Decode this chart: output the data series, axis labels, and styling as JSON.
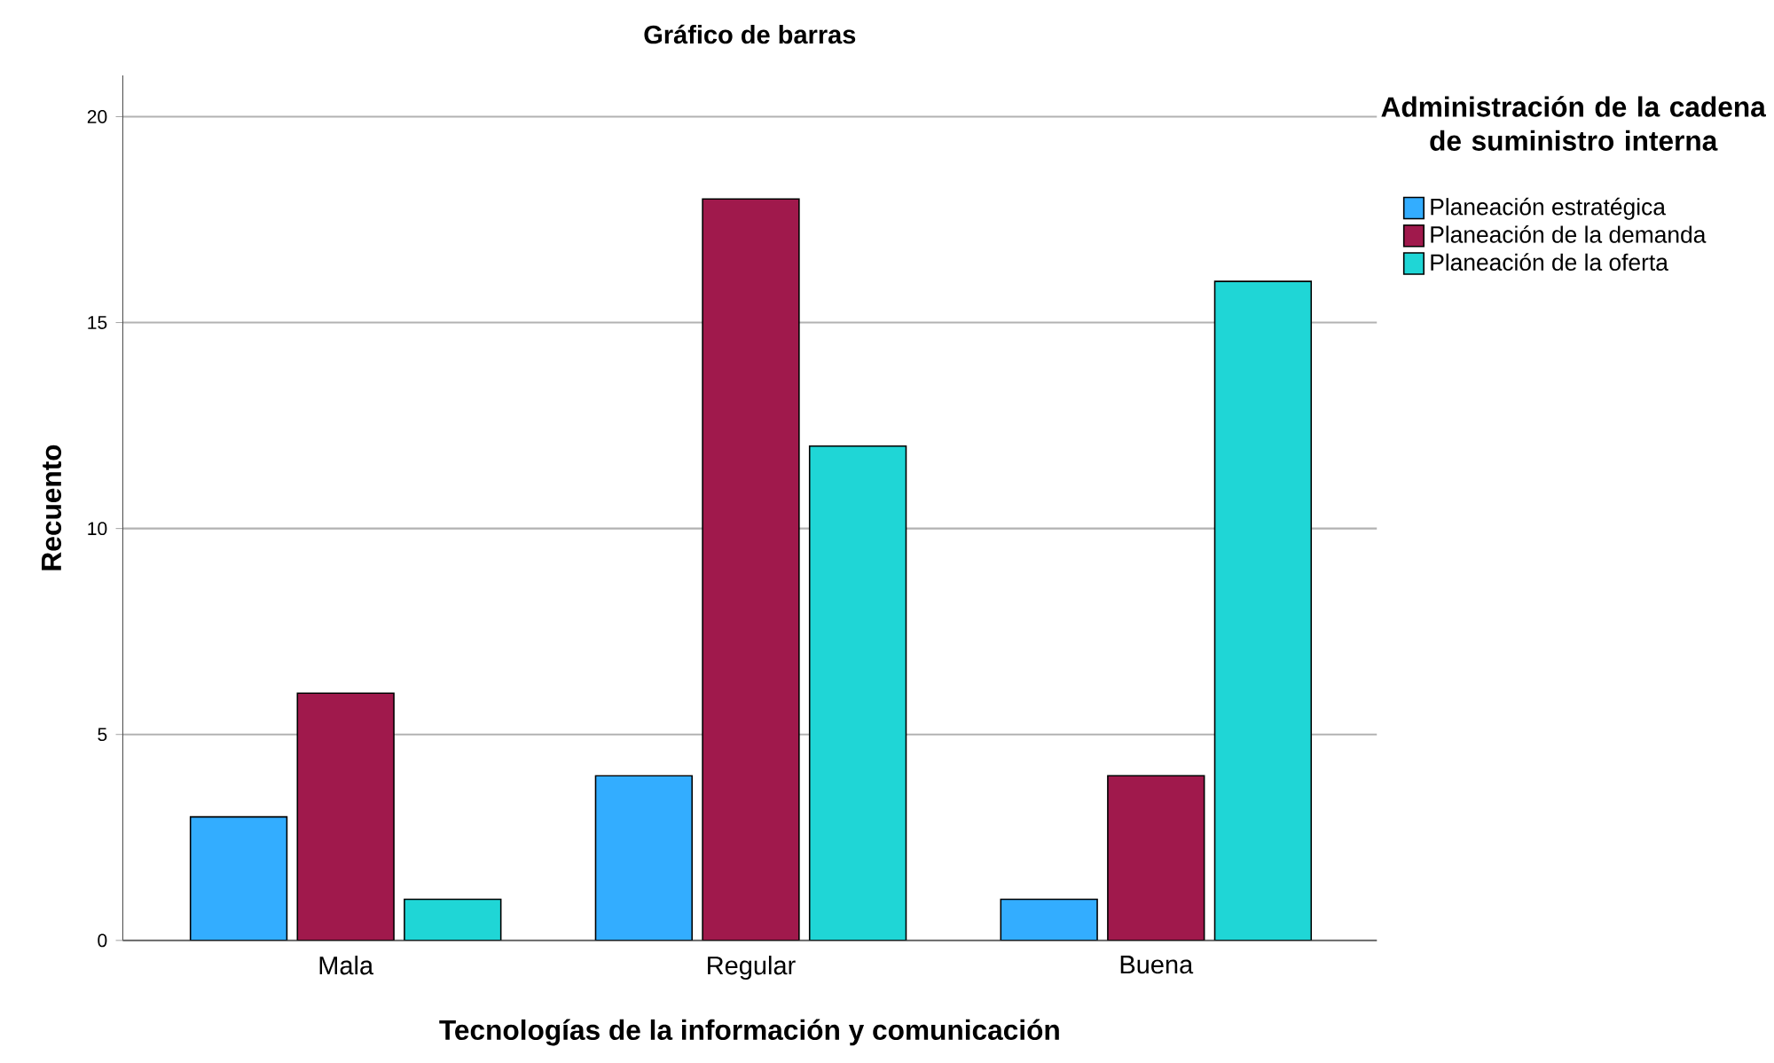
{
  "chart_data": {
    "type": "bar",
    "title": "Gráfico de barras",
    "xlabel": "Tecnologías de la información y comunicación",
    "ylabel": "Recuento",
    "legend_title": "Administración de la cadena de suministro interna",
    "categories": [
      "Mala",
      "Regular",
      "Buena"
    ],
    "series": [
      {
        "name": "Planeación estratégica",
        "color": "#33adff",
        "values": [
          3,
          4,
          1
        ]
      },
      {
        "name": "Planeación de la demanda",
        "color": "#a0194c",
        "values": [
          6,
          18,
          4
        ]
      },
      {
        "name": "Planeación de la oferta",
        "color": "#1fd6d6",
        "values": [
          1,
          12,
          16
        ]
      }
    ],
    "ylim": [
      0,
      21
    ],
    "yticks": [
      0,
      5,
      10,
      15,
      20
    ],
    "grid": "y",
    "legend": "right"
  }
}
